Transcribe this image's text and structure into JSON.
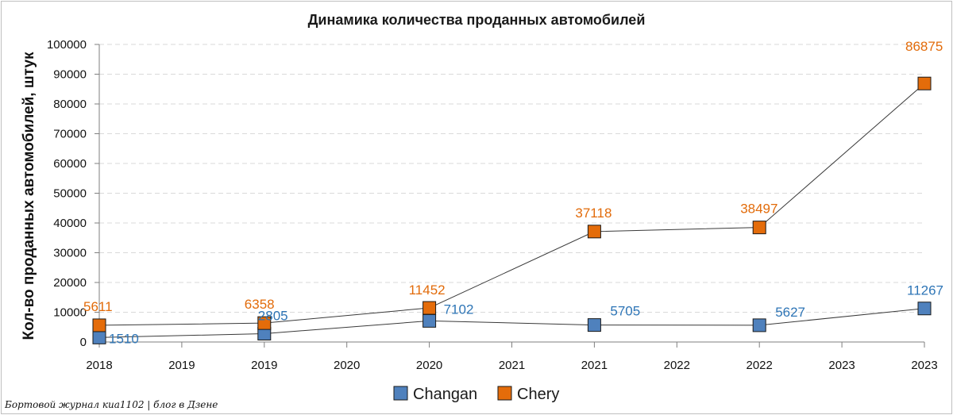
{
  "chart_data": {
    "type": "line",
    "title": "Динамика количества проданных автомобилей",
    "xlabel": "",
    "ylabel": "Кол-во проданных автомобилей, штук",
    "categories": [
      "2018",
      "2019",
      "2020",
      "2021",
      "2022",
      "2023"
    ],
    "x_ticks": [
      "2018",
      "2019",
      "2019",
      "2020",
      "2020",
      "2021",
      "2021",
      "2022",
      "2022",
      "2023",
      "2023"
    ],
    "y_ticks": [
      "0",
      "10000",
      "20000",
      "30000",
      "40000",
      "50000",
      "60000",
      "70000",
      "80000",
      "90000",
      "100000"
    ],
    "ylim": [
      0,
      100000
    ],
    "grid": true,
    "legend_position": "bottom",
    "series": [
      {
        "name": "Changan",
        "values": [
          1510,
          2805,
          7102,
          5705,
          5627,
          11267
        ],
        "color": "#4f81bd",
        "label_color": "#2e75b6"
      },
      {
        "name": "Chery",
        "values": [
          5611,
          6358,
          11452,
          37118,
          38497,
          86875
        ],
        "color": "#e46c0a",
        "label_color": "#e26b0a"
      }
    ]
  },
  "watermark": "Бортовой журнал киа1102 | блог в Дзене"
}
